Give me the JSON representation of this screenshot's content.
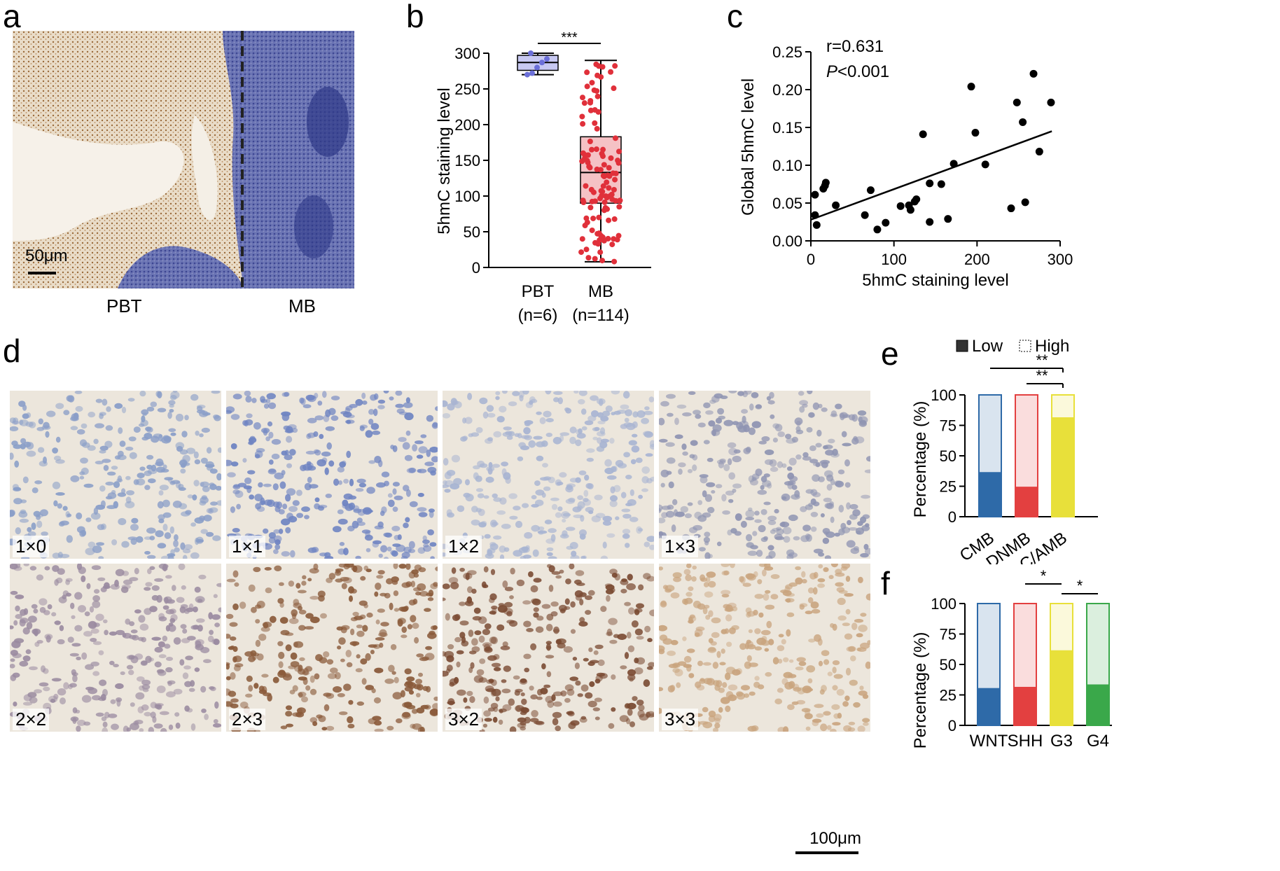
{
  "figure": {
    "panel_letters": [
      "a",
      "b",
      "c",
      "d",
      "e",
      "f"
    ]
  },
  "panel_a": {
    "scale_bar": "50μm",
    "labels": [
      "PBT",
      "MB"
    ],
    "colors": {
      "pbt_tissue": "#d8c3a6",
      "mb_tissue": "#5b64a8",
      "background": "#f3ece2"
    }
  },
  "panel_d": {
    "tiles": [
      {
        "label": "1×0",
        "tone": "#8a9ec8"
      },
      {
        "label": "1×1",
        "tone": "#6f84c2"
      },
      {
        "label": "1×2",
        "tone": "#a8b4d2"
      },
      {
        "label": "1×3",
        "tone": "#8f94b2"
      },
      {
        "label": "2×2",
        "tone": "#9a8aa0"
      },
      {
        "label": "2×3",
        "tone": "#8a5a3a"
      },
      {
        "label": "3×2",
        "tone": "#7a4a32"
      },
      {
        "label": "3×3",
        "tone": "#c9a47e"
      }
    ],
    "scale_bar": "100μm"
  },
  "chart_data": [
    {
      "panel": "b",
      "type": "box",
      "ylabel": "5hmC staining level",
      "ylim": [
        0,
        300
      ],
      "yticks": [
        0,
        50,
        100,
        150,
        200,
        250,
        300
      ],
      "categories": [
        "PBT\n(n=6)",
        "MB\n(n=114)"
      ],
      "category_lines": [
        [
          "PBT",
          "(n=6)"
        ],
        [
          "MB",
          "(n=114)"
        ]
      ],
      "boxes": [
        {
          "name": "PBT",
          "min": 270,
          "q1": 276,
          "median": 287,
          "q3": 297,
          "max": 300,
          "color": "#6b6fd8",
          "fill": "#c8c9f2",
          "points": [
            270,
            272,
            280,
            287,
            292,
            300
          ]
        },
        {
          "name": "MB",
          "min": 8,
          "q1": 90,
          "median": 133,
          "q3": 183,
          "max": 290,
          "color": "#e0303a",
          "fill": "#f5c2c5"
        }
      ],
      "significance": "***"
    },
    {
      "panel": "c",
      "type": "scatter",
      "xlabel": "5hmC staining level",
      "ylabel": "Global 5hmC level",
      "xlim": [
        0,
        300
      ],
      "ylim": [
        0,
        0.25
      ],
      "xticks": [
        0,
        100,
        200,
        300
      ],
      "yticks": [
        "0.00",
        "0.05",
        "0.10",
        "0.15",
        "0.20",
        "0.25"
      ],
      "annotation_r": "r=0.631",
      "annotation_p_italic": "P",
      "annotation_p_rest": "<0.001",
      "fit": {
        "x0": 0,
        "y0": 0.028,
        "x1": 290,
        "y1": 0.145
      },
      "points": [
        [
          5,
          0.061
        ],
        [
          5,
          0.034
        ],
        [
          7,
          0.021
        ],
        [
          15,
          0.069
        ],
        [
          17,
          0.073
        ],
        [
          18,
          0.077
        ],
        [
          30,
          0.047
        ],
        [
          65,
          0.034
        ],
        [
          72,
          0.067
        ],
        [
          80,
          0.015
        ],
        [
          90,
          0.024
        ],
        [
          108,
          0.046
        ],
        [
          118,
          0.047
        ],
        [
          120,
          0.041
        ],
        [
          125,
          0.052
        ],
        [
          127,
          0.055
        ],
        [
          135,
          0.141
        ],
        [
          143,
          0.025
        ],
        [
          143,
          0.076
        ],
        [
          157,
          0.075
        ],
        [
          165,
          0.029
        ],
        [
          172,
          0.102
        ],
        [
          193,
          0.204
        ],
        [
          198,
          0.143
        ],
        [
          210,
          0.101
        ],
        [
          241,
          0.043
        ],
        [
          248,
          0.183
        ],
        [
          255,
          0.157
        ],
        [
          258,
          0.051
        ],
        [
          268,
          0.221
        ],
        [
          275,
          0.118
        ],
        [
          289,
          0.183
        ]
      ]
    },
    {
      "panel": "e",
      "type": "bar",
      "stacked": true,
      "ylabel": "Percentage (%)",
      "ylim": [
        0,
        100
      ],
      "yticks": [
        0,
        25,
        50,
        75,
        100
      ],
      "categories": [
        "CMB",
        "DNMB",
        "LC/AMB"
      ],
      "legend": [
        "Low",
        "High"
      ],
      "series": [
        {
          "name": "Low",
          "values": [
            36,
            24,
            81
          ]
        },
        {
          "name": "High",
          "values": [
            64,
            76,
            19
          ]
        }
      ],
      "colors": [
        "#2e6aa8",
        "#e34040",
        "#e8e03a"
      ],
      "significance": [
        {
          "from": 0,
          "to": 2,
          "text": "**"
        },
        {
          "from": 1,
          "to": 2,
          "text": "**"
        }
      ]
    },
    {
      "panel": "f",
      "type": "bar",
      "stacked": true,
      "ylabel": "Percentage (%)",
      "ylim": [
        0,
        100
      ],
      "yticks": [
        0,
        25,
        50,
        75,
        100
      ],
      "categories": [
        "WNT",
        "SHH",
        "G3",
        "G4"
      ],
      "series": [
        {
          "name": "Low",
          "values": [
            30,
            31,
            61,
            33
          ]
        },
        {
          "name": "High",
          "values": [
            70,
            69,
            39,
            67
          ]
        }
      ],
      "colors": [
        "#2e6aa8",
        "#e34040",
        "#e8e03a",
        "#3aa84a"
      ],
      "significance": [
        {
          "from": 1,
          "to": 2,
          "text": "*"
        },
        {
          "from": 2,
          "to": 3,
          "text": "*"
        }
      ]
    }
  ]
}
